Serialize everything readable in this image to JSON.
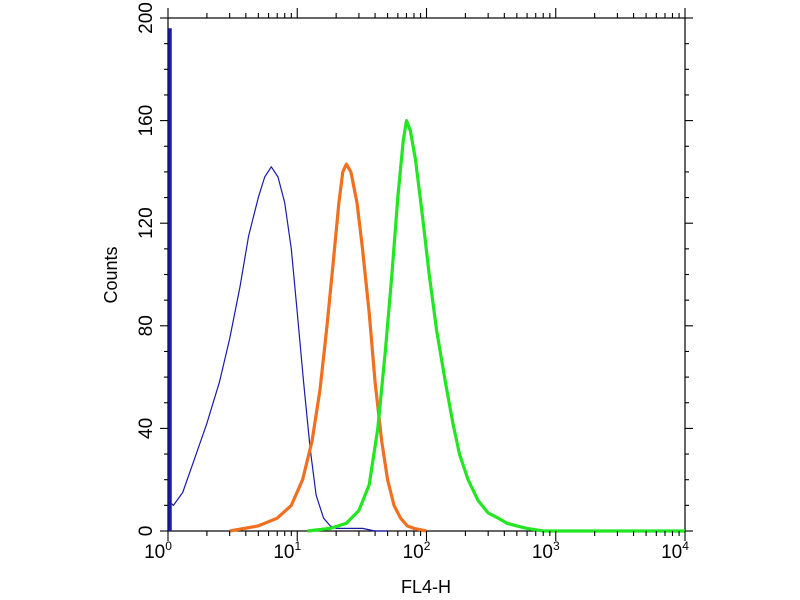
{
  "chart_data": {
    "type": "line",
    "title": "",
    "xlabel": "FL4-H",
    "ylabel": "Counts",
    "x_scale": "log",
    "xlim": [
      1,
      10000
    ],
    "ylim": [
      0,
      200
    ],
    "grid": false,
    "x_tick_labels": [
      {
        "value": 1,
        "base": "10",
        "exp": "0"
      },
      {
        "value": 10,
        "base": "10",
        "exp": "1"
      },
      {
        "value": 100,
        "base": "10",
        "exp": "2"
      },
      {
        "value": 1000,
        "base": "10",
        "exp": "3"
      },
      {
        "value": 10000,
        "base": "10",
        "exp": "4"
      }
    ],
    "y_ticks": [
      0,
      40,
      80,
      120,
      160,
      200
    ],
    "y_tick_labels": [
      "0",
      "40",
      "80",
      "120",
      "160",
      "200"
    ],
    "series": [
      {
        "color": "#1a1aa8",
        "x": [
          1,
          1.1,
          1.3,
          1.6,
          2,
          2.5,
          3,
          3.6,
          4.2,
          5,
          5.6,
          6.3,
          7.1,
          8,
          9,
          10,
          11.2,
          12.6,
          14,
          16,
          18,
          20,
          25,
          32,
          40,
          50
        ],
        "y": [
          12,
          10,
          15,
          28,
          42,
          58,
          75,
          95,
          115,
          130,
          138,
          142,
          138,
          128,
          110,
          85,
          58,
          32,
          14,
          5,
          2,
          1,
          1,
          1,
          0,
          0
        ]
      },
      {
        "color": "#f07020",
        "x": [
          3,
          5,
          7,
          9,
          11,
          13,
          15,
          17,
          19,
          21,
          22.5,
          24,
          26,
          29,
          32,
          36,
          40,
          45,
          50,
          56,
          63,
          71,
          80,
          100
        ],
        "y": [
          0,
          2,
          5,
          10,
          20,
          35,
          55,
          80,
          105,
          128,
          140,
          143,
          140,
          128,
          110,
          85,
          58,
          35,
          20,
          10,
          5,
          2,
          1,
          0
        ]
      },
      {
        "color": "#22e622",
        "x": [
          12,
          18,
          24,
          30,
          36,
          42,
          48,
          54,
          60,
          66,
          70,
          75,
          82,
          92,
          105,
          120,
          140,
          160,
          180,
          210,
          250,
          300,
          360,
          420,
          500,
          600,
          800,
          1000,
          2000,
          10000
        ],
        "y": [
          0,
          1,
          3,
          8,
          18,
          40,
          70,
          100,
          130,
          152,
          160,
          156,
          145,
          125,
          100,
          78,
          58,
          42,
          30,
          20,
          12,
          7,
          5,
          3,
          2,
          1,
          0,
          0,
          0,
          0
        ]
      }
    ]
  }
}
